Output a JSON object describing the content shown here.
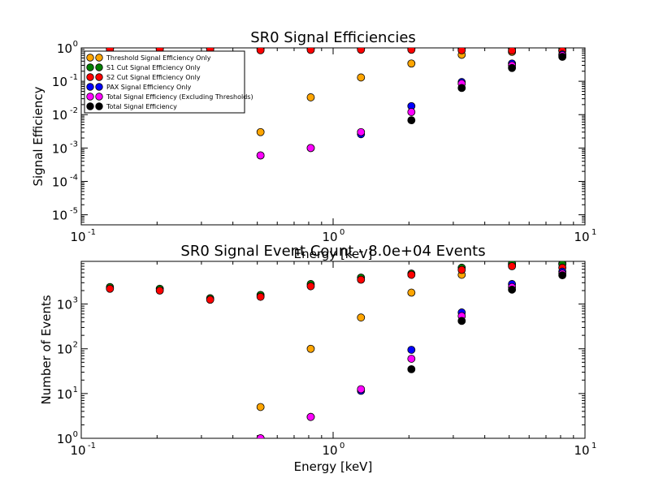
{
  "chart_data": [
    {
      "type": "scatter",
      "title": "SR0 Signal Efficiencies",
      "xlabel": "Energy [keV]",
      "ylabel": "Signal Efficiency",
      "xscale": "log",
      "yscale": "log",
      "xlim": [
        0.1,
        10
      ],
      "ylim": [
        5e-06,
        1
      ],
      "x_ticks": [
        "10",
        "10",
        "10"
      ],
      "x_tick_exps": [
        "-1",
        "0",
        "1"
      ],
      "y_ticks": [
        "10",
        "10",
        "10",
        "10",
        "10",
        "10"
      ],
      "y_tick_exps": [
        "-5",
        "-4",
        "-3",
        "-2",
        "-1",
        "0"
      ],
      "legend_position": "top-left",
      "x": [
        0.13,
        0.205,
        0.325,
        0.515,
        0.815,
        1.29,
        2.045,
        3.24,
        5.13,
        8.13
      ],
      "series": [
        {
          "name": "Threshold Signal Efficiency Only",
          "color": "#ffa500",
          "values": [
            null,
            null,
            null,
            0.003,
            0.033,
            0.13,
            0.34,
            0.62,
            0.76,
            0.84
          ]
        },
        {
          "name": "S1 Cut Signal Efficiency Only",
          "color": "#008000",
          "values": [
            0.95,
            0.95,
            0.95,
            0.95,
            0.95,
            0.95,
            0.95,
            0.95,
            0.95,
            0.97
          ]
        },
        {
          "name": "S2 Cut Signal Efficiency Only",
          "color": "#ff0000",
          "values": [
            0.9,
            0.9,
            0.9,
            0.85,
            0.87,
            0.88,
            0.88,
            0.85,
            0.83,
            0.82
          ]
        },
        {
          "name": "PAX Signal Efficiency Only",
          "color": "#0000ff",
          "values": [
            null,
            null,
            null,
            0.0006,
            0.001,
            0.0026,
            0.018,
            0.095,
            0.34,
            0.64
          ]
        },
        {
          "name": "Total Signal Efficiency (Excluding Thresholds)",
          "color": "#ff00ff",
          "values": [
            null,
            null,
            null,
            0.0006,
            0.001,
            0.003,
            0.012,
            0.085,
            0.3,
            0.6
          ]
        },
        {
          "name": "Total Signal Efficiency",
          "color": "#000000",
          "values": [
            null,
            null,
            null,
            null,
            null,
            null,
            0.0068,
            0.063,
            0.25,
            0.54
          ]
        }
      ]
    },
    {
      "type": "scatter",
      "title": "SR0 Signal Event Count - 8.0e+04 Events",
      "xlabel": "Energy [keV]",
      "ylabel": "Number of Events",
      "xscale": "log",
      "yscale": "log",
      "xlim": [
        0.1,
        10
      ],
      "ylim": [
        1,
        9000
      ],
      "x_ticks": [
        "10",
        "10",
        "10"
      ],
      "x_tick_exps": [
        "-1",
        "0",
        "1"
      ],
      "y_ticks": [
        "10",
        "10",
        "10",
        "10"
      ],
      "y_tick_exps": [
        "0",
        "1",
        "2",
        "3"
      ],
      "x": [
        0.13,
        0.205,
        0.325,
        0.515,
        0.815,
        1.29,
        2.045,
        3.24,
        5.13,
        8.13
      ],
      "series": [
        {
          "name": "Threshold Signal Efficiency Only",
          "color": "#ffa500",
          "values": [
            null,
            null,
            null,
            5,
            100,
            500,
            1800,
            4500,
            7500,
            8000
          ]
        },
        {
          "name": "S1 Cut Signal Efficiency Only",
          "color": "#008000",
          "values": [
            2400,
            2200,
            1350,
            1600,
            2800,
            3900,
            4800,
            6500,
            8000,
            7800
          ]
        },
        {
          "name": "S2 Cut Signal Efficiency Only",
          "color": "#ff0000",
          "values": [
            2200,
            2000,
            1250,
            1450,
            2500,
            3500,
            4500,
            5800,
            7000,
            6500
          ]
        },
        {
          "name": "PAX Signal Efficiency Only",
          "color": "#0000ff",
          "values": [
            null,
            null,
            null,
            1,
            3,
            11.5,
            95,
            650,
            2800,
            5300
          ]
        },
        {
          "name": "Total Signal Efficiency (Excluding Thresholds)",
          "color": "#ff00ff",
          "values": [
            null,
            null,
            null,
            1,
            3,
            12.5,
            60,
            540,
            2400,
            4800
          ]
        },
        {
          "name": "Total Signal Efficiency",
          "color": "#000000",
          "values": [
            null,
            null,
            null,
            null,
            null,
            null,
            35,
            420,
            2100,
            4400
          ]
        }
      ]
    }
  ]
}
